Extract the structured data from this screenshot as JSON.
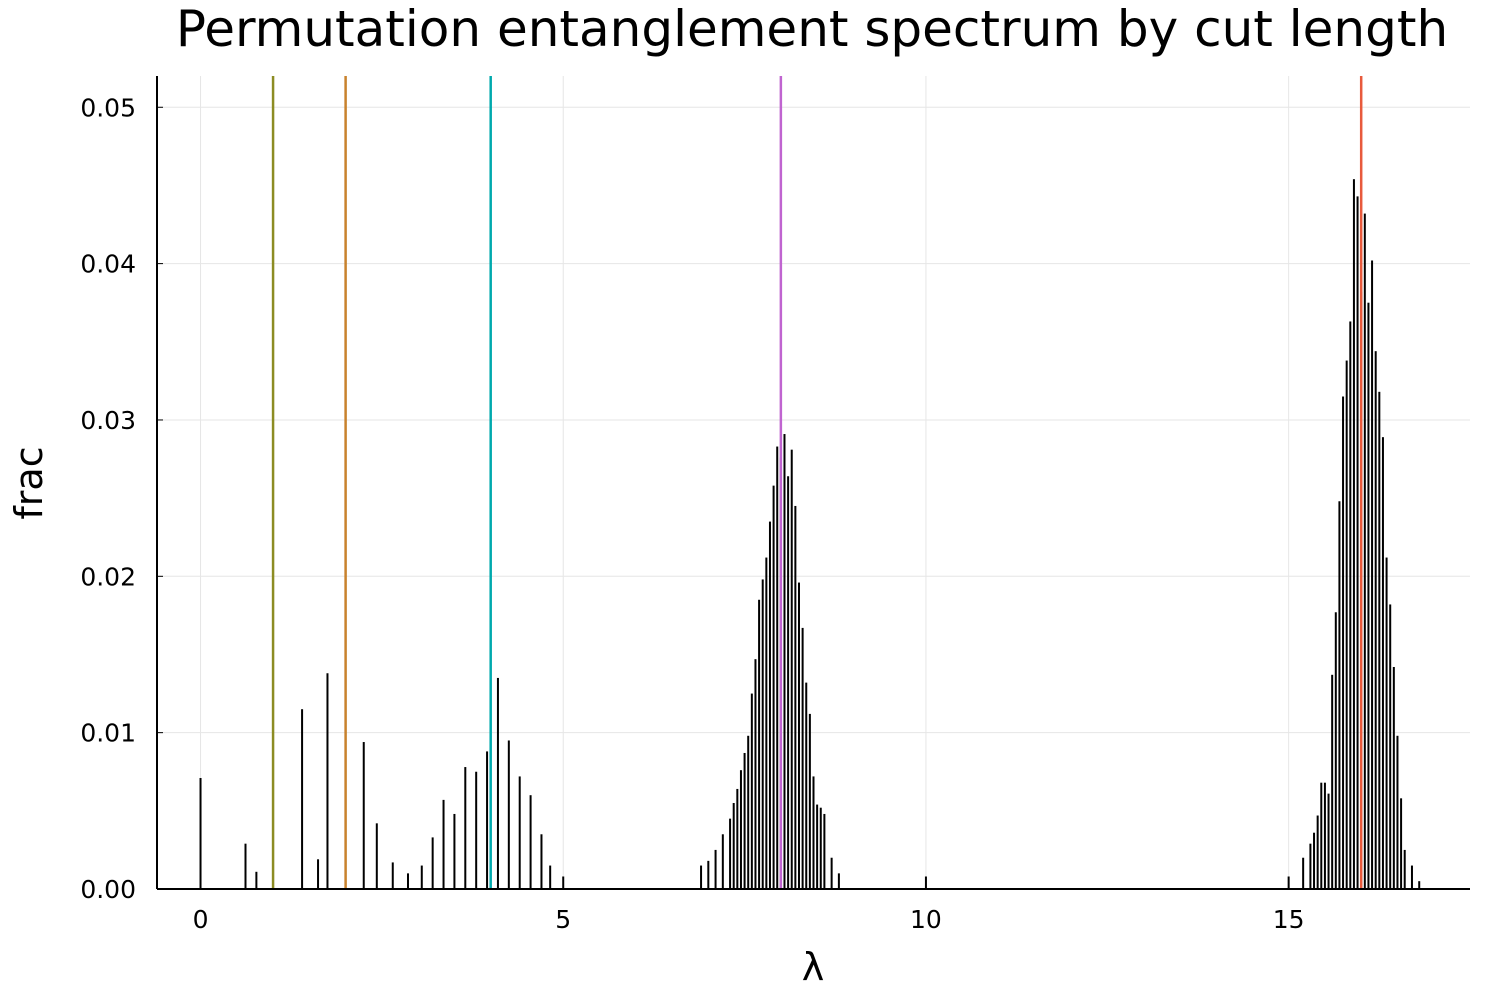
{
  "chart_data": {
    "type": "bar",
    "title": "Permutation entanglement spectrum by cut length",
    "xlabel": "λ",
    "ylabel": "frac",
    "xlim": [
      -0.6,
      17.5
    ],
    "ylim": [
      0,
      0.052
    ],
    "grid": true,
    "legend": "none",
    "x_ticks": [
      {
        "value": 0,
        "label": "0"
      },
      {
        "value": 5,
        "label": "5"
      },
      {
        "value": 10,
        "label": "10"
      },
      {
        "value": 15,
        "label": "15"
      }
    ],
    "y_ticks": [
      {
        "value": 0,
        "label": "0.00"
      },
      {
        "value": 0.01,
        "label": "0.01"
      },
      {
        "value": 0.02,
        "label": "0.02"
      },
      {
        "value": 0.03,
        "label": "0.03"
      },
      {
        "value": 0.04,
        "label": "0.04"
      },
      {
        "value": 0.05,
        "label": "0.05"
      }
    ],
    "bar_color": "#000000",
    "x": [
      0.0,
      0.62,
      0.77,
      1.4,
      1.62,
      1.75,
      2.25,
      2.43,
      2.65,
      2.86,
      3.05,
      3.2,
      3.35,
      3.5,
      3.65,
      3.8,
      3.95,
      4.1,
      4.25,
      4.4,
      4.55,
      4.7,
      4.82,
      5.0,
      6.9,
      7.0,
      7.1,
      7.2,
      7.3,
      7.35,
      7.4,
      7.45,
      7.5,
      7.55,
      7.6,
      7.65,
      7.7,
      7.75,
      7.8,
      7.85,
      7.9,
      7.95,
      8.0,
      8.05,
      8.1,
      8.15,
      8.2,
      8.25,
      8.3,
      8.35,
      8.4,
      8.45,
      8.5,
      8.55,
      8.6,
      8.7,
      8.8,
      10.0,
      15.0,
      15.2,
      15.3,
      15.35,
      15.4,
      15.45,
      15.5,
      15.55,
      15.6,
      15.65,
      15.7,
      15.75,
      15.8,
      15.85,
      15.9,
      15.95,
      16.0,
      16.05,
      16.1,
      16.15,
      16.2,
      16.25,
      16.3,
      16.35,
      16.4,
      16.45,
      16.5,
      16.55,
      16.6,
      16.7,
      16.8
    ],
    "values": [
      0.0071,
      0.0029,
      0.0011,
      0.0115,
      0.0019,
      0.0138,
      0.0094,
      0.0042,
      0.0017,
      0.001,
      0.0015,
      0.0033,
      0.0057,
      0.0048,
      0.0078,
      0.0075,
      0.0088,
      0.0135,
      0.0095,
      0.0072,
      0.006,
      0.0035,
      0.0015,
      0.0008,
      0.0015,
      0.0018,
      0.0025,
      0.0035,
      0.0045,
      0.0055,
      0.0064,
      0.0076,
      0.0087,
      0.0098,
      0.0125,
      0.0147,
      0.0185,
      0.0198,
      0.0212,
      0.0235,
      0.0258,
      0.0283,
      0.0276,
      0.0291,
      0.0264,
      0.0281,
      0.0245,
      0.0196,
      0.0167,
      0.0132,
      0.0112,
      0.0072,
      0.0054,
      0.0052,
      0.0048,
      0.002,
      0.001,
      0.0008,
      0.0008,
      0.002,
      0.0029,
      0.0036,
      0.0047,
      0.0068,
      0.0068,
      0.0061,
      0.0137,
      0.0177,
      0.0248,
      0.0315,
      0.0338,
      0.0363,
      0.0454,
      0.0443,
      0.0382,
      0.0432,
      0.0375,
      0.0402,
      0.0344,
      0.0318,
      0.0289,
      0.0212,
      0.0182,
      0.0142,
      0.0098,
      0.0058,
      0.0025,
      0.0015,
      0.0005
    ],
    "reference_lines": [
      {
        "x": 1.0,
        "color": "#8c8c23"
      },
      {
        "x": 2.0,
        "color": "#c8822d"
      },
      {
        "x": 4.0,
        "color": "#00a9ad"
      },
      {
        "x": 8.0,
        "color": "#c064d0"
      },
      {
        "x": 16.0,
        "color": "#e85a3c"
      }
    ]
  }
}
